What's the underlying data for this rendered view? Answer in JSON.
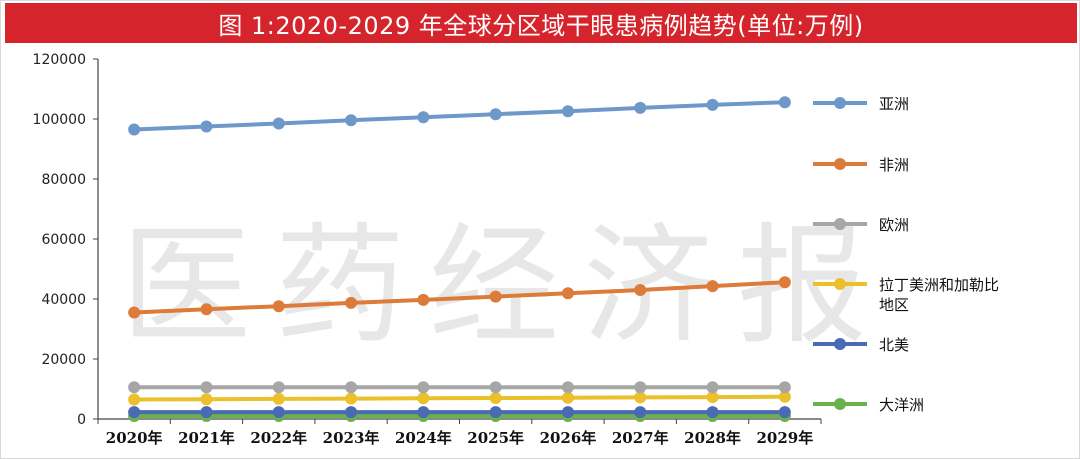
{
  "title": "图 1:2020-2029 年全球分区域干眼患病例趋势(单位:万例)",
  "watermark": "医药经济报",
  "chart_data": {
    "type": "line",
    "title": "图 1:2020-2029 年全球分区域干眼患病例趋势(单位:万例)",
    "xlabel": "",
    "ylabel": "",
    "categories": [
      "2020年",
      "2021年",
      "2022年",
      "2023年",
      "2024年",
      "2025年",
      "2026年",
      "2027年",
      "2028年",
      "2029年"
    ],
    "ylim": [
      0,
      120000
    ],
    "yticks": [
      0,
      20000,
      40000,
      60000,
      80000,
      100000,
      120000
    ],
    "ytick_labels": [
      "0",
      "20000",
      "40000",
      "60000",
      "80000",
      "100000",
      "120000"
    ],
    "grid": false,
    "legend_position": "right",
    "series": [
      {
        "name": "亚洲",
        "color": "#6d98c9",
        "values": [
          96500,
          97500,
          98500,
          99600,
          100600,
          101600,
          102600,
          103700,
          104700,
          105600
        ]
      },
      {
        "name": "非洲",
        "color": "#dd7b3b",
        "values": [
          35500,
          36600,
          37600,
          38700,
          39700,
          40800,
          41900,
          43000,
          44300,
          45600
        ]
      },
      {
        "name": "欧洲",
        "color": "#a6a6a6",
        "values": [
          10600,
          10600,
          10600,
          10600,
          10600,
          10600,
          10600,
          10600,
          10600,
          10600
        ]
      },
      {
        "name": "拉丁美洲和加勒比地区",
        "label_lines": [
          "拉丁美洲和加勒比",
          "地区"
        ],
        "color": "#ecc02a",
        "values": [
          6500,
          6600,
          6700,
          6800,
          6900,
          7000,
          7100,
          7200,
          7300,
          7400
        ]
      },
      {
        "name": "北美",
        "color": "#4a6bb3",
        "values": [
          2300,
          2300,
          2300,
          2300,
          2300,
          2300,
          2300,
          2300,
          2300,
          2300
        ]
      },
      {
        "name": "大洋洲",
        "color": "#6ab04c",
        "values": [
          1000,
          1000,
          1000,
          1000,
          1000,
          1000,
          1000,
          1000,
          1000,
          1000
        ]
      }
    ]
  }
}
